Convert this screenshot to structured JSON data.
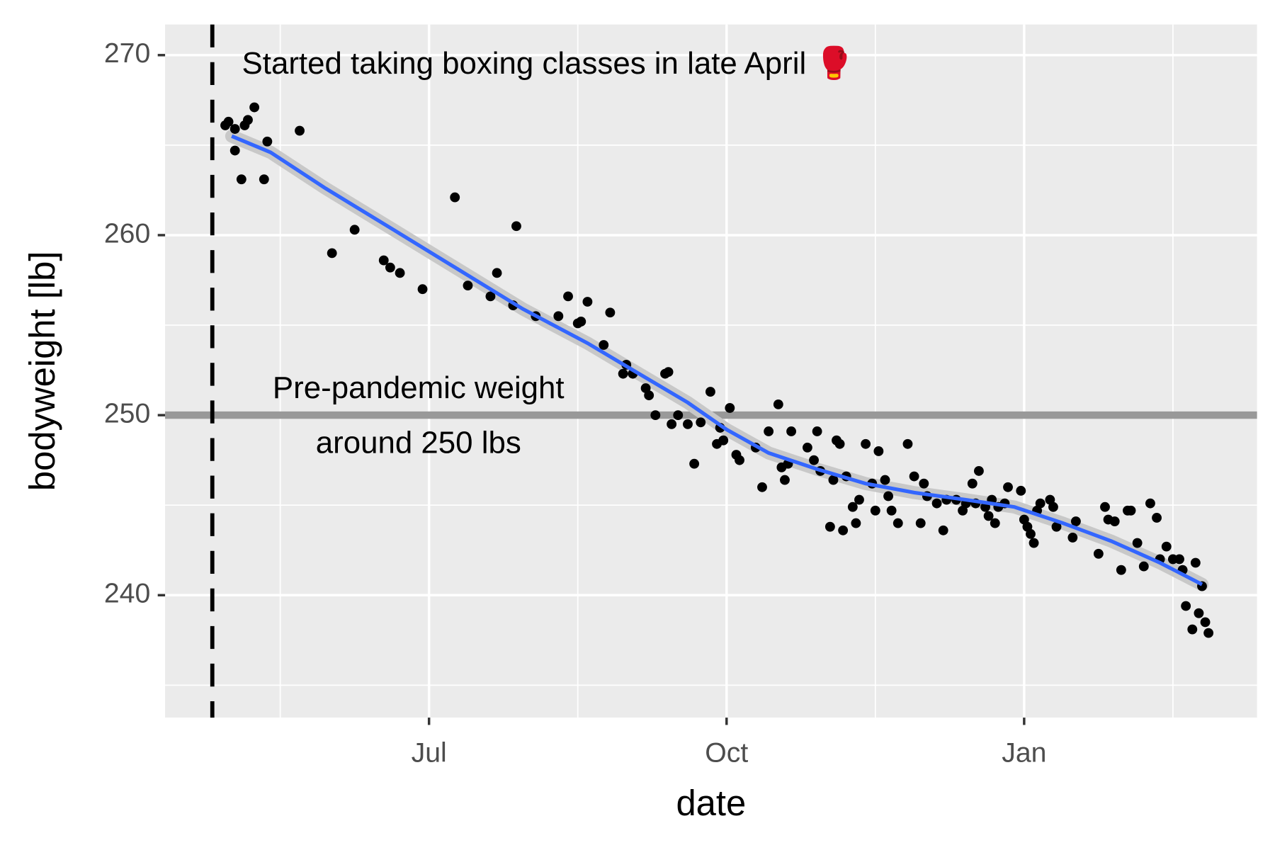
{
  "chart_data": {
    "type": "scatter",
    "x_label": "date",
    "y_label": "bodyweight [lb]",
    "xlim": [
      99.4,
      437
    ],
    "ylim": [
      233.2,
      271.7
    ],
    "xticks": [
      {
        "value": 181,
        "label": "Jul"
      },
      {
        "value": 273,
        "label": "Oct"
      },
      {
        "value": 365,
        "label": "Jan"
      }
    ],
    "yticks": [
      240,
      250,
      260,
      270
    ],
    "grid": true,
    "color": "#000000",
    "x": [
      118,
      119,
      121,
      121,
      123,
      124,
      125,
      127,
      131,
      130,
      141,
      151,
      158,
      167,
      169,
      172,
      179,
      189,
      193,
      200,
      202,
      207,
      208,
      214,
      221,
      224,
      227,
      228,
      230,
      235,
      237,
      241,
      242,
      244,
      248,
      249,
      251,
      254,
      255,
      256,
      258,
      261,
      263,
      265,
      268,
      270,
      271,
      272,
      274,
      276,
      277,
      282,
      284,
      286,
      289,
      290,
      291,
      292,
      293,
      298,
      300,
      301,
      302,
      305,
      306,
      307,
      308,
      309,
      310,
      312,
      313,
      314,
      316,
      318,
      319,
      320,
      322,
      323,
      324,
      326,
      329,
      331,
      333,
      334,
      335,
      338,
      340,
      341,
      344,
      346,
      347,
      349,
      351,
      350,
      353,
      354,
      355,
      356,
      357,
      359,
      360,
      364,
      365,
      366,
      367,
      368,
      369,
      370,
      373,
      374,
      375,
      380,
      381,
      388,
      390,
      391,
      393,
      395,
      397,
      398,
      400,
      402,
      404,
      406,
      407,
      409,
      411,
      413,
      414,
      415,
      417,
      418,
      419,
      420,
      421,
      422
    ],
    "values": [
      266.1,
      266.3,
      265.9,
      264.7,
      263.1,
      266.1,
      266.4,
      267.1,
      265.2,
      263.1,
      265.8,
      259.0,
      260.3,
      258.6,
      258.2,
      257.9,
      257.0,
      262.1,
      257.2,
      256.6,
      257.9,
      256.1,
      260.5,
      255.5,
      255.5,
      256.6,
      255.1,
      255.2,
      256.3,
      253.9,
      255.7,
      252.3,
      252.8,
      252.3,
      251.5,
      251.1,
      250.0,
      252.3,
      252.4,
      249.5,
      250.0,
      249.5,
      247.3,
      249.6,
      251.3,
      248.4,
      249.3,
      248.6,
      250.4,
      247.8,
      247.5,
      248.2,
      246.0,
      249.1,
      250.6,
      247.1,
      246.4,
      247.3,
      249.1,
      248.2,
      247.5,
      249.1,
      246.9,
      243.8,
      246.4,
      248.6,
      248.4,
      243.6,
      246.6,
      244.9,
      244.0,
      245.3,
      248.4,
      246.2,
      244.7,
      248.0,
      246.4,
      245.5,
      244.7,
      244.0,
      248.4,
      246.6,
      244.0,
      246.2,
      245.5,
      245.1,
      243.6,
      245.3,
      245.3,
      244.7,
      245.1,
      246.2,
      246.9,
      245.1,
      244.9,
      244.4,
      245.3,
      244.0,
      244.9,
      245.1,
      246.0,
      245.8,
      244.2,
      243.8,
      243.4,
      242.9,
      244.7,
      245.1,
      245.3,
      244.9,
      243.8,
      243.2,
      244.1,
      242.3,
      244.9,
      244.2,
      244.1,
      241.4,
      244.7,
      244.7,
      242.9,
      241.6,
      245.1,
      244.3,
      242.0,
      242.7,
      242.0,
      242.0,
      241.4,
      239.4,
      238.1,
      241.8,
      239.0,
      240.5,
      238.5,
      237.9
    ],
    "trend": {
      "color": "#3366ff",
      "x": [
        120,
        132,
        149,
        170,
        190,
        210,
        230,
        245,
        261,
        273,
        286,
        301,
        316,
        331,
        347,
        362,
        377,
        392,
        407,
        420
      ],
      "values": [
        265.5,
        264.6,
        262.6,
        260.3,
        258.1,
        255.9,
        254.0,
        252.4,
        250.7,
        249.2,
        247.9,
        247.0,
        246.2,
        245.7,
        245.3,
        244.9,
        244.0,
        243.0,
        241.8,
        240.6
      ]
    },
    "hline": 250,
    "vline": 114,
    "annotations": [
      {
        "lines": [
          "Started taking boxing classes in late April 🥊"
        ]
      },
      {
        "lines": [
          "Pre-pandemic weight",
          "around 250 lbs"
        ]
      }
    ]
  }
}
